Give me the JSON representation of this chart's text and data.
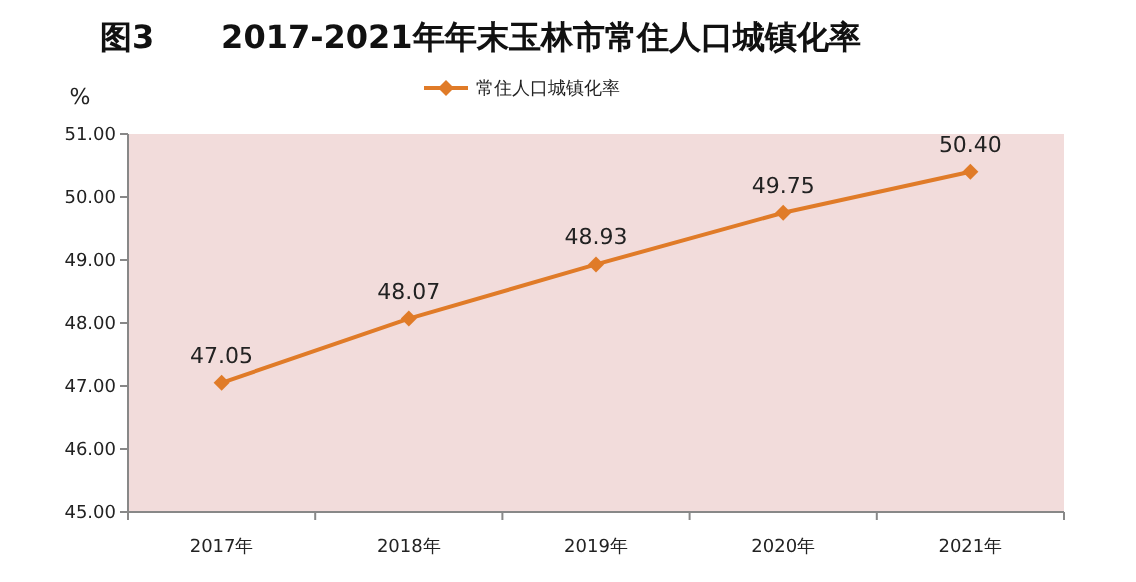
{
  "chart_data": {
    "type": "line",
    "title": "图3      2017-2021年年末玉林市常住人口城镇化率",
    "ylabel": "%",
    "categories": [
      "2017年",
      "2018年",
      "2019年",
      "2020年",
      "2021年"
    ],
    "series": [
      {
        "name": "常住人口城镇化率",
        "color": "#e07b28",
        "values": [
          47.05,
          48.07,
          48.93,
          49.75,
          50.4
        ]
      }
    ],
    "ylim": [
      45,
      51
    ],
    "yticks": [
      {
        "value": 45,
        "label": "45.00"
      },
      {
        "value": 46,
        "label": "46.00"
      },
      {
        "value": 47,
        "label": "47.00"
      },
      {
        "value": 48,
        "label": "48.00"
      },
      {
        "value": 49,
        "label": "49.00"
      },
      {
        "value": 50,
        "label": "50.00"
      },
      {
        "value": 51,
        "label": "51.00"
      }
    ],
    "value_labels": [
      "47.05",
      "48.07",
      "48.93",
      "49.75",
      "50.40"
    ],
    "marker": "diamond",
    "legend": "top",
    "grid": false
  }
}
